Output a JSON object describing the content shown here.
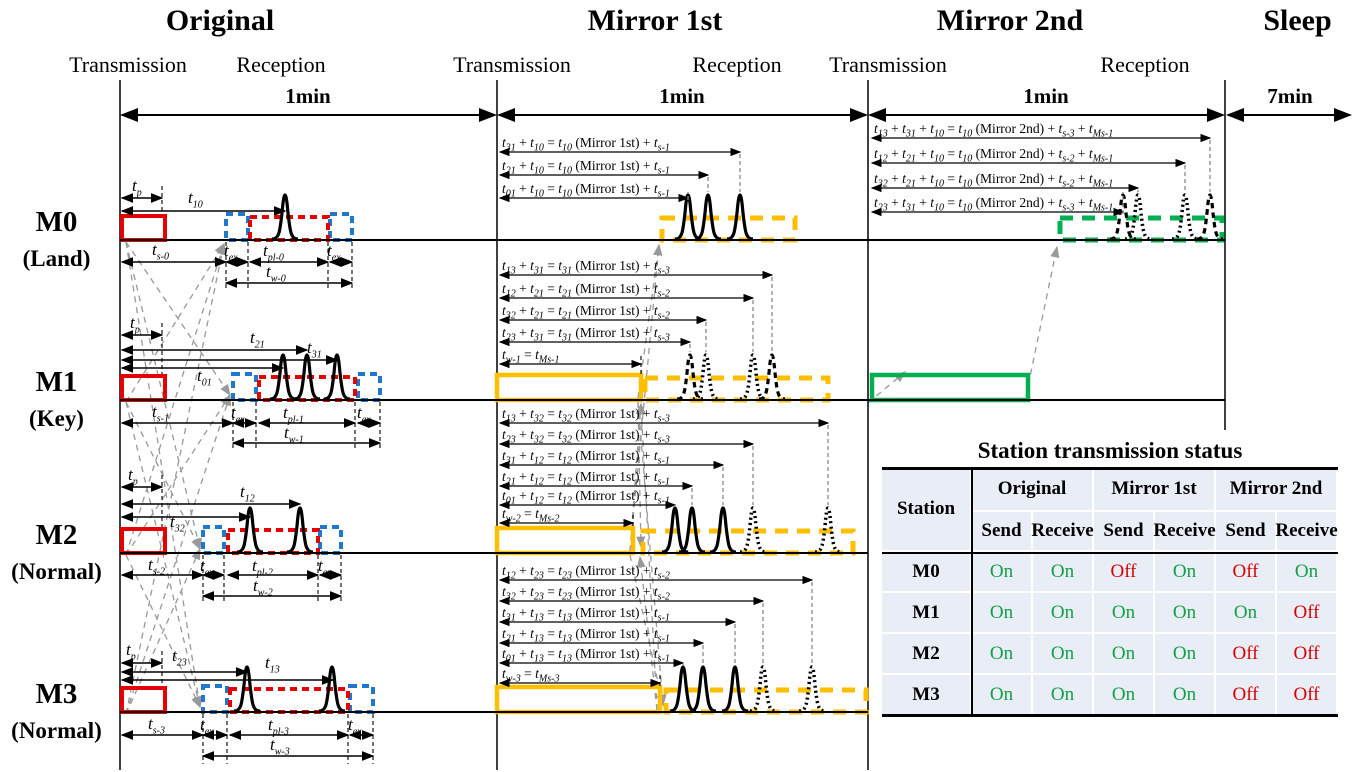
{
  "phases": [
    {
      "title": "Original",
      "transmission": "Transmission",
      "reception": "Reception",
      "duration": "1min"
    },
    {
      "title": "Mirror 1st",
      "transmission": "Transmission",
      "reception": "Reception",
      "duration": "1min"
    },
    {
      "title": "Mirror 2nd",
      "transmission": "Transmission",
      "reception": "Reception",
      "duration": "1min"
    },
    {
      "title": "Sleep",
      "duration": "7min"
    }
  ],
  "stations": [
    {
      "name": "M0",
      "role": "(Land)"
    },
    {
      "name": "M1",
      "role": "(Key)"
    },
    {
      "name": "M2",
      "role": "(Normal)"
    },
    {
      "name": "M3",
      "role": "(Normal)"
    }
  ],
  "rows": [
    {
      "top_labels": [
        "t_{p}",
        "t_{10}"
      ],
      "bottom_labels": [
        "t_{s-0}",
        "t_{ex}",
        "t_{pl-0}",
        "t_{ex}",
        "t_{w-0}"
      ],
      "mirror1_equations": [
        "t_{31} + t_{10} = t_{10} (Mirror 1st) + t_{s-1}",
        "t_{21} + t_{10} = t_{10} (Mirror 1st) + t_{s-1}",
        "t_{01} + t_{10} = t_{10} (Mirror 1st) + t_{s-1}"
      ],
      "mirror2_equations": [
        "t_{13} + t_{31} + t_{10} = t_{10} (Mirror 2nd) + t_{s-3} + t_{Ms-1}",
        "t_{12} + t_{21} + t_{10} = t_{10} (Mirror 2nd) + t_{s-2} + t_{Ms-1}",
        "t_{32} + t_{21} + t_{10} = t_{10} (Mirror 2nd) + t_{s-2} + t_{Ms-1}",
        "t_{23} + t_{31} + t_{10} = t_{10} (Mirror 2nd) + t_{s-3} + t_{Ms-1}"
      ]
    },
    {
      "top_labels": [
        "t_{p}",
        "t_{21}",
        "t_{31}",
        "t_{01}"
      ],
      "bottom_labels": [
        "t_{s-1}",
        "t_{ex}",
        "t_{pl-1}",
        "t_{ex}",
        "t_{w-1}"
      ],
      "mirror1_equations": [
        "t_{13} + t_{31} = t_{31} (Mirror 1st) + t_{s-3}",
        "t_{12} + t_{21} = t_{21} (Mirror 1st) + t_{s-2}",
        "t_{32} + t_{21} = t_{21} (Mirror 1st) + t_{s-2}",
        "t_{23} + t_{31} = t_{31} (Mirror 1st) + t_{s-3}",
        "t_{w-1} = t_{Ms-1}"
      ],
      "mirror2_equations": []
    },
    {
      "top_labels": [
        "t_{p}",
        "t_{12}",
        "t_{32}"
      ],
      "bottom_labels": [
        "t_{s-2}",
        "t_{ex}",
        "t_{pl-2}",
        "t_{ex}",
        "t_{w-2}"
      ],
      "mirror1_equations": [
        "t_{13} + t_{32} = t_{32} (Mirror 1st) + t_{s-3}",
        "t_{23} + t_{32} = t_{32} (Mirror 1st) + t_{s-3}",
        "t_{31} + t_{12} = t_{12} (Mirror 1st) + t_{s-1}",
        "t_{21} + t_{12} = t_{12} (Mirror 1st) + t_{s-1}",
        "t_{01} + t_{12} = t_{12} (Mirror 1st) + t_{s-1}",
        "t_{w-2} = t_{Ms-2}"
      ],
      "mirror2_equations": []
    },
    {
      "top_labels": [
        "t_{p}",
        "t_{23}",
        "t_{13}"
      ],
      "bottom_labels": [
        "t_{s-3}",
        "t_{ex}",
        "t_{pl-3}",
        "t_{ex}",
        "t_{w-3}"
      ],
      "mirror1_equations": [
        "t_{12} + t_{23} = t_{23} (Mirror 1st) + t_{s-2}",
        "t_{32} + t_{23} = t_{23} (Mirror 1st) + t_{s-2}",
        "t_{31} + t_{13} = t_{13} (Mirror 1st) + t_{s-1}",
        "t_{21} + t_{13} = t_{13} (Mirror 1st) + t_{s-1}",
        "t_{01} + t_{13} = t_{13} (Mirror 1st) + t_{s-1}",
        "t_{w-3} = t_{Ms-3}"
      ],
      "mirror2_equations": []
    }
  ],
  "table": {
    "title": "Station transmission status",
    "station_header": "Station",
    "phase_headers": [
      "Original",
      "Mirror 1st",
      "Mirror 2nd"
    ],
    "sub_headers": [
      "Send",
      "Receive"
    ],
    "rows": [
      {
        "station": "M0",
        "values": [
          "On",
          "On",
          "Off",
          "On",
          "Off",
          "On"
        ]
      },
      {
        "station": "M1",
        "values": [
          "On",
          "On",
          "On",
          "On",
          "On",
          "Off"
        ]
      },
      {
        "station": "M2",
        "values": [
          "On",
          "On",
          "On",
          "On",
          "Off",
          "Off"
        ]
      },
      {
        "station": "M3",
        "values": [
          "On",
          "On",
          "On",
          "On",
          "Off",
          "Off"
        ]
      }
    ],
    "colors": {
      "on": "#11a046",
      "off": "#d40000",
      "background": "#e9edf6"
    }
  },
  "colors": {
    "original_tx": "#e60000",
    "original_rx_window": "#1f78cd",
    "mirror1": "#fdbf00",
    "mirror2": "#00b050",
    "connector": "#999999"
  }
}
